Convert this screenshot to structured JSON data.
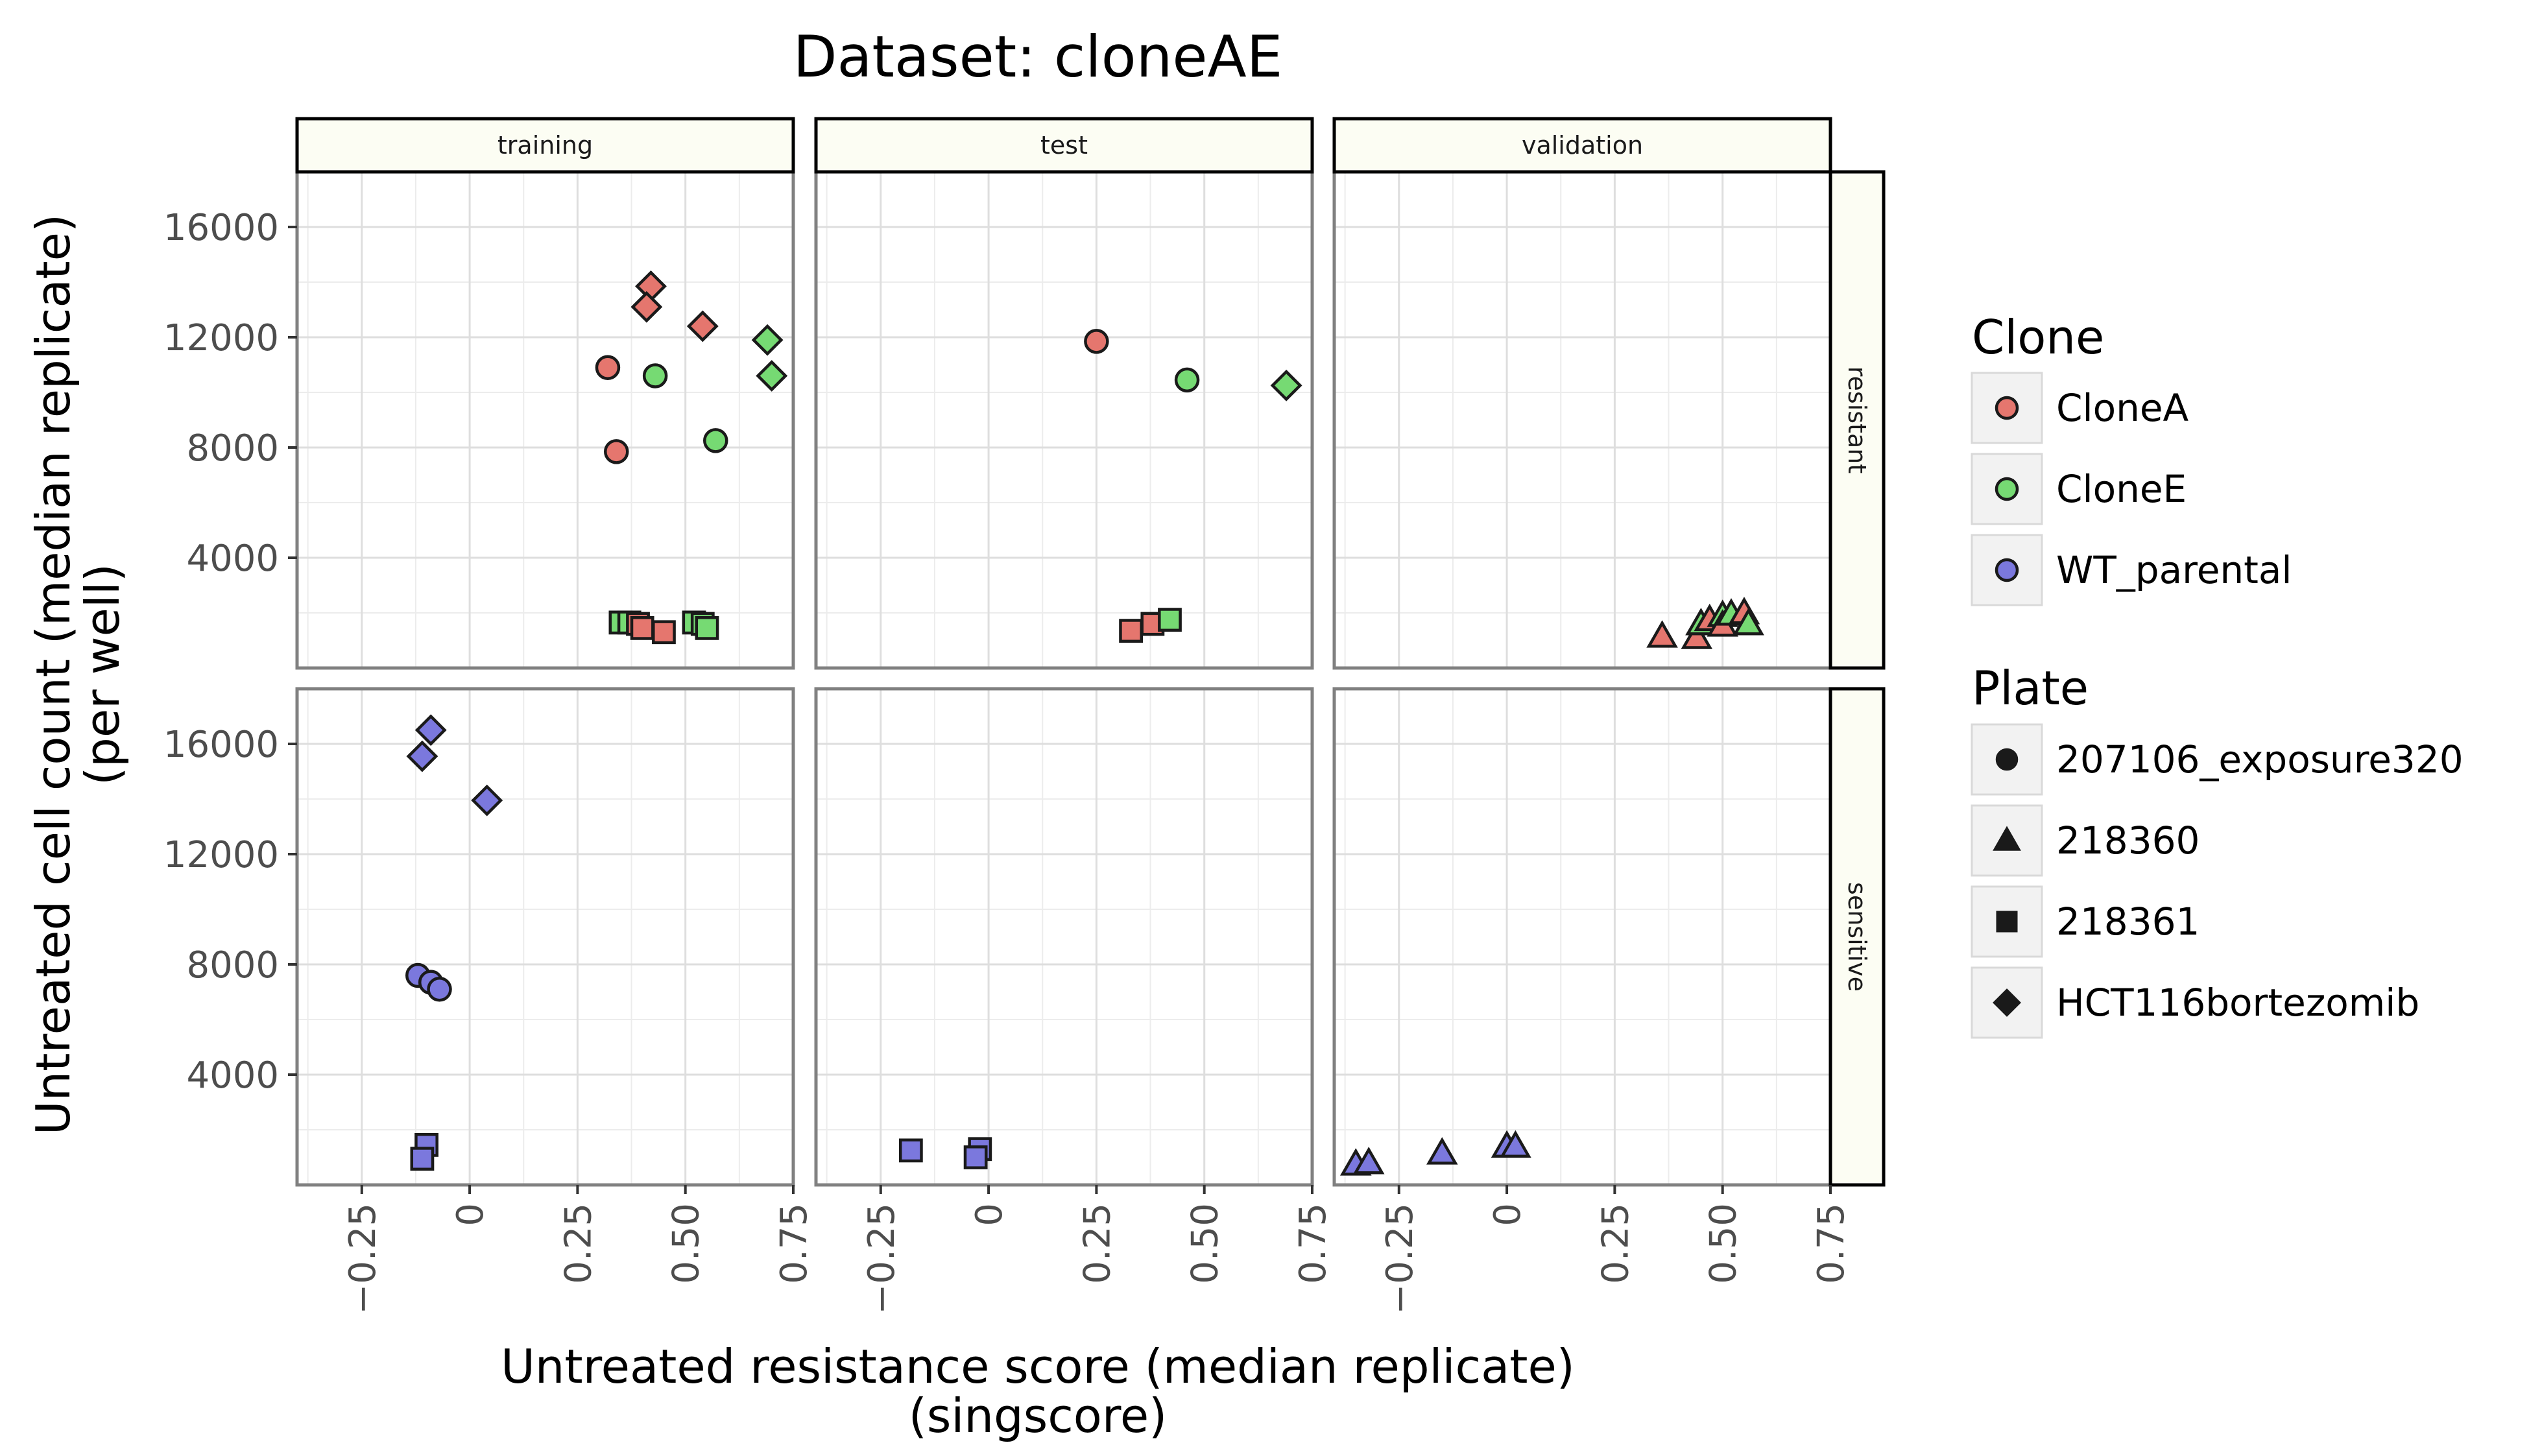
{
  "chart_data": {
    "type": "scatter",
    "title": "Dataset: cloneAE",
    "xlabel_lines": [
      "Untreated resistance score (median replicate)",
      "(singscore)"
    ],
    "ylabel_lines": [
      "Untreated cell count (median replicate)",
      "(per well)"
    ],
    "xlim": [
      -0.4,
      0.75
    ],
    "ylim": [
      0,
      18000
    ],
    "x_ticks": [
      -0.25,
      0,
      0.25,
      0.5,
      0.75
    ],
    "x_tick_labels": [
      "−0.25",
      "0",
      "0.25",
      "0.50",
      "0.75"
    ],
    "y_ticks": [
      4000,
      8000,
      12000,
      16000
    ],
    "y_tick_labels": [
      "4000",
      "8000",
      "12000",
      "16000"
    ],
    "facet_columns": [
      "training",
      "test",
      "validation"
    ],
    "facet_rows": [
      "resistant",
      "sensitive"
    ],
    "grid": true,
    "legend_position": "right",
    "clone_legend": {
      "title": "Clone",
      "items": [
        {
          "name": "CloneA",
          "color": "#E5766E"
        },
        {
          "name": "CloneE",
          "color": "#76DA73"
        },
        {
          "name": "WT_parental",
          "color": "#7B78DD"
        }
      ]
    },
    "plate_legend": {
      "title": "Plate",
      "items": [
        {
          "name": "207106_exposure320",
          "shape": "circle"
        },
        {
          "name": "218360",
          "shape": "triangle"
        },
        {
          "name": "218361",
          "shape": "square"
        },
        {
          "name": "HCT116bortezomib",
          "shape": "diamond"
        }
      ]
    },
    "points": [
      {
        "facet_col": "training",
        "facet_row": "resistant",
        "clone": "CloneA",
        "plate": "207106_exposure320",
        "x": 0.32,
        "y": 10900
      },
      {
        "facet_col": "training",
        "facet_row": "resistant",
        "clone": "CloneA",
        "plate": "207106_exposure320",
        "x": 0.34,
        "y": 7850
      },
      {
        "facet_col": "training",
        "facet_row": "resistant",
        "clone": "CloneE",
        "plate": "207106_exposure320",
        "x": 0.43,
        "y": 10600
      },
      {
        "facet_col": "training",
        "facet_row": "resistant",
        "clone": "CloneE",
        "plate": "207106_exposure320",
        "x": 0.57,
        "y": 8250
      },
      {
        "facet_col": "training",
        "facet_row": "resistant",
        "clone": "CloneA",
        "plate": "HCT116bortezomib",
        "x": 0.42,
        "y": 13850
      },
      {
        "facet_col": "training",
        "facet_row": "resistant",
        "clone": "CloneA",
        "plate": "HCT116bortezomib",
        "x": 0.41,
        "y": 13100
      },
      {
        "facet_col": "training",
        "facet_row": "resistant",
        "clone": "CloneA",
        "plate": "HCT116bortezomib",
        "x": 0.54,
        "y": 12400
      },
      {
        "facet_col": "training",
        "facet_row": "resistant",
        "clone": "CloneE",
        "plate": "HCT116bortezomib",
        "x": 0.69,
        "y": 11900
      },
      {
        "facet_col": "training",
        "facet_row": "resistant",
        "clone": "CloneE",
        "plate": "HCT116bortezomib",
        "x": 0.7,
        "y": 10600
      },
      {
        "facet_col": "training",
        "facet_row": "resistant",
        "clone": "CloneE",
        "plate": "218361",
        "x": 0.35,
        "y": 1650
      },
      {
        "facet_col": "training",
        "facet_row": "resistant",
        "clone": "CloneE",
        "plate": "218361",
        "x": 0.37,
        "y": 1650
      },
      {
        "facet_col": "training",
        "facet_row": "resistant",
        "clone": "CloneA",
        "plate": "218361",
        "x": 0.39,
        "y": 1600
      },
      {
        "facet_col": "training",
        "facet_row": "resistant",
        "clone": "CloneA",
        "plate": "218361",
        "x": 0.4,
        "y": 1450
      },
      {
        "facet_col": "training",
        "facet_row": "resistant",
        "clone": "CloneA",
        "plate": "218361",
        "x": 0.45,
        "y": 1300
      },
      {
        "facet_col": "training",
        "facet_row": "resistant",
        "clone": "CloneE",
        "plate": "218361",
        "x": 0.52,
        "y": 1650
      },
      {
        "facet_col": "training",
        "facet_row": "resistant",
        "clone": "CloneE",
        "plate": "218361",
        "x": 0.54,
        "y": 1600
      },
      {
        "facet_col": "training",
        "facet_row": "resistant",
        "clone": "CloneE",
        "plate": "218361",
        "x": 0.55,
        "y": 1450
      },
      {
        "facet_col": "test",
        "facet_row": "resistant",
        "clone": "CloneA",
        "plate": "207106_exposure320",
        "x": 0.25,
        "y": 11850
      },
      {
        "facet_col": "test",
        "facet_row": "resistant",
        "clone": "CloneE",
        "plate": "207106_exposure320",
        "x": 0.46,
        "y": 10450
      },
      {
        "facet_col": "test",
        "facet_row": "resistant",
        "clone": "CloneE",
        "plate": "HCT116bortezomib",
        "x": 0.69,
        "y": 10250
      },
      {
        "facet_col": "test",
        "facet_row": "resistant",
        "clone": "CloneA",
        "plate": "218361",
        "x": 0.33,
        "y": 1350
      },
      {
        "facet_col": "test",
        "facet_row": "resistant",
        "clone": "CloneA",
        "plate": "218361",
        "x": 0.38,
        "y": 1600
      },
      {
        "facet_col": "test",
        "facet_row": "resistant",
        "clone": "CloneE",
        "plate": "218361",
        "x": 0.42,
        "y": 1750
      },
      {
        "facet_col": "validation",
        "facet_row": "resistant",
        "clone": "CloneA",
        "plate": "218360",
        "x": 0.36,
        "y": 1150
      },
      {
        "facet_col": "validation",
        "facet_row": "resistant",
        "clone": "CloneA",
        "plate": "218360",
        "x": 0.44,
        "y": 1100
      },
      {
        "facet_col": "validation",
        "facet_row": "resistant",
        "clone": "CloneE",
        "plate": "218360",
        "x": 0.45,
        "y": 1600
      },
      {
        "facet_col": "validation",
        "facet_row": "resistant",
        "clone": "CloneA",
        "plate": "218360",
        "x": 0.47,
        "y": 1750
      },
      {
        "facet_col": "validation",
        "facet_row": "resistant",
        "clone": "CloneE",
        "plate": "218360",
        "x": 0.5,
        "y": 1900
      },
      {
        "facet_col": "validation",
        "facet_row": "resistant",
        "clone": "CloneA",
        "plate": "218360",
        "x": 0.5,
        "y": 1550
      },
      {
        "facet_col": "validation",
        "facet_row": "resistant",
        "clone": "CloneE",
        "plate": "218360",
        "x": 0.52,
        "y": 1950
      },
      {
        "facet_col": "validation",
        "facet_row": "resistant",
        "clone": "CloneA",
        "plate": "218360",
        "x": 0.55,
        "y": 2000
      },
      {
        "facet_col": "validation",
        "facet_row": "resistant",
        "clone": "CloneE",
        "plate": "218360",
        "x": 0.56,
        "y": 1600
      },
      {
        "facet_col": "training",
        "facet_row": "sensitive",
        "clone": "WT_parental",
        "plate": "HCT116bortezomib",
        "x": -0.09,
        "y": 16500
      },
      {
        "facet_col": "training",
        "facet_row": "sensitive",
        "clone": "WT_parental",
        "plate": "HCT116bortezomib",
        "x": -0.11,
        "y": 15550
      },
      {
        "facet_col": "training",
        "facet_row": "sensitive",
        "clone": "WT_parental",
        "plate": "HCT116bortezomib",
        "x": 0.04,
        "y": 13950
      },
      {
        "facet_col": "training",
        "facet_row": "sensitive",
        "clone": "WT_parental",
        "plate": "207106_exposure320",
        "x": -0.12,
        "y": 7600
      },
      {
        "facet_col": "training",
        "facet_row": "sensitive",
        "clone": "WT_parental",
        "plate": "207106_exposure320",
        "x": -0.09,
        "y": 7350
      },
      {
        "facet_col": "training",
        "facet_row": "sensitive",
        "clone": "WT_parental",
        "plate": "207106_exposure320",
        "x": -0.07,
        "y": 7100
      },
      {
        "facet_col": "training",
        "facet_row": "sensitive",
        "clone": "WT_parental",
        "plate": "218361",
        "x": -0.1,
        "y": 1450
      },
      {
        "facet_col": "training",
        "facet_row": "sensitive",
        "clone": "WT_parental",
        "plate": "218361",
        "x": -0.11,
        "y": 950
      },
      {
        "facet_col": "test",
        "facet_row": "sensitive",
        "clone": "WT_parental",
        "plate": "218361",
        "x": -0.18,
        "y": 1250
      },
      {
        "facet_col": "test",
        "facet_row": "sensitive",
        "clone": "WT_parental",
        "plate": "218361",
        "x": -0.02,
        "y": 1300
      },
      {
        "facet_col": "test",
        "facet_row": "sensitive",
        "clone": "WT_parental",
        "plate": "218361",
        "x": -0.03,
        "y": 1000
      },
      {
        "facet_col": "validation",
        "facet_row": "sensitive",
        "clone": "WT_parental",
        "plate": "218360",
        "x": -0.35,
        "y": 750
      },
      {
        "facet_col": "validation",
        "facet_row": "sensitive",
        "clone": "WT_parental",
        "plate": "218360",
        "x": -0.32,
        "y": 800
      },
      {
        "facet_col": "validation",
        "facet_row": "sensitive",
        "clone": "WT_parental",
        "plate": "218360",
        "x": -0.15,
        "y": 1150
      },
      {
        "facet_col": "validation",
        "facet_row": "sensitive",
        "clone": "WT_parental",
        "plate": "218360",
        "x": 0.0,
        "y": 1400
      },
      {
        "facet_col": "validation",
        "facet_row": "sensitive",
        "clone": "WT_parental",
        "plate": "218360",
        "x": 0.02,
        "y": 1400
      }
    ]
  }
}
